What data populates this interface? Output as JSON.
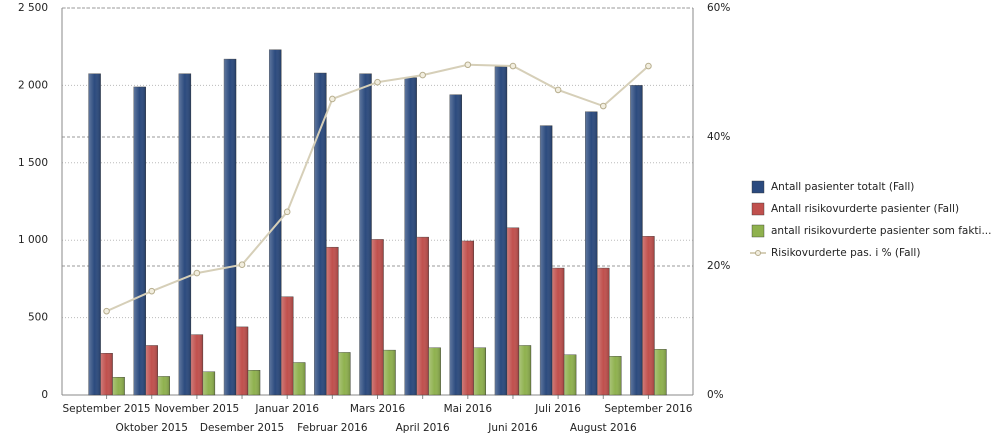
{
  "chart_data": {
    "type": "bar",
    "categories": [
      "September 2015",
      "Oktober 2015",
      "November 2015",
      "Desember 2015",
      "Januar 2016",
      "Februar 2016",
      "Mars 2016",
      "April 2016",
      "Mai 2016",
      "Juni 2016",
      "Juli 2016",
      "August 2016",
      "September 2016"
    ],
    "series": [
      {
        "name": "Antall pasienter totalt (Fall)",
        "color": "#2b4a7e",
        "values": [
          2075,
          1990,
          2075,
          2170,
          2230,
          2080,
          2075,
          2050,
          1940,
          2120,
          1740,
          1830,
          2000
        ]
      },
      {
        "name": "Antall risikovurderte pasienter (Fall)",
        "color": "#c0504d",
        "values": [
          270,
          320,
          390,
          440,
          635,
          955,
          1005,
          1020,
          995,
          1080,
          820,
          820,
          1025
        ]
      },
      {
        "name": "antall risikovurderte pasienter som fakti...",
        "color": "#8fb14e",
        "values": [
          115,
          120,
          150,
          160,
          210,
          275,
          290,
          305,
          305,
          320,
          260,
          250,
          295
        ]
      },
      {
        "name": "Risikovurderte pas. i % (Fall)",
        "color": "#d6cfb8",
        "type": "line",
        "axis": "y2",
        "values": [
          13.0,
          16.1,
          18.9,
          20.2,
          28.4,
          45.9,
          48.5,
          49.6,
          51.2,
          51.0,
          47.3,
          44.8,
          51.0
        ]
      }
    ],
    "ylim": [
      0,
      2500
    ],
    "yticks": [
      0,
      500,
      {
        "value": 1000,
        "label": "1 000"
      },
      {
        "value": 1500,
        "label": "1 500"
      },
      {
        "value": 2000,
        "label": "2 000"
      },
      {
        "value": 2500,
        "label": "2 500"
      }
    ],
    "y2lim": [
      0,
      60
    ],
    "y2ticks": [
      {
        "value": 0,
        "label": "0%"
      },
      {
        "value": 20,
        "label": "20%"
      },
      {
        "value": 40,
        "label": "40%"
      },
      {
        "value": 60,
        "label": "60%"
      }
    ],
    "grid": true,
    "legend": "right"
  }
}
